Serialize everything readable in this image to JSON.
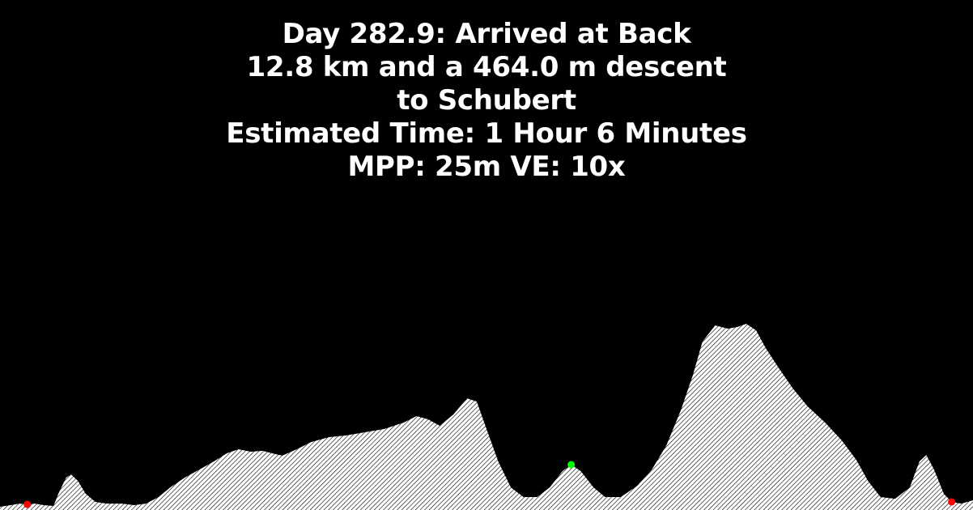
{
  "header": {
    "line1": "Day 282.9: Arrived at Back",
    "line2": "12.8 km and a 464.0 m descent",
    "line3": "to Schubert",
    "line4": "Estimated Time: 1 Hour 6 Minutes",
    "line5": "MPP: 25m VE: 10x"
  },
  "colors": {
    "background": "#000000",
    "text": "#ffffff",
    "terrain_fill": "#ffffff",
    "terrain_hatch": "#000000",
    "endpoint_marker": "#ff0000",
    "current_marker": "#00ff00"
  },
  "profile": {
    "distance_total_km": 12.8,
    "descent_m": 464.0,
    "mpp_m": 25,
    "vertical_exaggeration": 10,
    "samples": [
      [
        0.0,
        0.0
      ],
      [
        0.011,
        0.014
      ],
      [
        0.02,
        0.027
      ],
      [
        0.028,
        0.02
      ],
      [
        0.036,
        0.027
      ],
      [
        0.045,
        0.014
      ],
      [
        0.055,
        0.007
      ],
      [
        0.06,
        0.11
      ],
      [
        0.068,
        0.247
      ],
      [
        0.073,
        0.274
      ],
      [
        0.08,
        0.219
      ],
      [
        0.088,
        0.11
      ],
      [
        0.098,
        0.041
      ],
      [
        0.11,
        0.027
      ],
      [
        0.125,
        0.027
      ],
      [
        0.138,
        0.014
      ],
      [
        0.15,
        0.027
      ],
      [
        0.163,
        0.082
      ],
      [
        0.175,
        0.164
      ],
      [
        0.19,
        0.247
      ],
      [
        0.205,
        0.315
      ],
      [
        0.22,
        0.384
      ],
      [
        0.233,
        0.452
      ],
      [
        0.245,
        0.486
      ],
      [
        0.258,
        0.466
      ],
      [
        0.27,
        0.473
      ],
      [
        0.28,
        0.452
      ],
      [
        0.29,
        0.432
      ],
      [
        0.305,
        0.486
      ],
      [
        0.32,
        0.548
      ],
      [
        0.338,
        0.589
      ],
      [
        0.355,
        0.603
      ],
      [
        0.375,
        0.63
      ],
      [
        0.395,
        0.658
      ],
      [
        0.415,
        0.712
      ],
      [
        0.428,
        0.767
      ],
      [
        0.44,
        0.74
      ],
      [
        0.452,
        0.685
      ],
      [
        0.466,
        0.781
      ],
      [
        0.48,
        0.918
      ],
      [
        0.49,
        0.89
      ],
      [
        0.5,
        0.658
      ],
      [
        0.512,
        0.384
      ],
      [
        0.525,
        0.164
      ],
      [
        0.538,
        0.082
      ],
      [
        0.552,
        0.082
      ],
      [
        0.565,
        0.164
      ],
      [
        0.578,
        0.301
      ],
      [
        0.587,
        0.356
      ],
      [
        0.597,
        0.301
      ],
      [
        0.61,
        0.164
      ],
      [
        0.622,
        0.082
      ],
      [
        0.638,
        0.082
      ],
      [
        0.655,
        0.178
      ],
      [
        0.67,
        0.315
      ],
      [
        0.685,
        0.521
      ],
      [
        0.7,
        0.822
      ],
      [
        0.712,
        1.11
      ],
      [
        0.722,
        1.397
      ],
      [
        0.735,
        1.534
      ],
      [
        0.748,
        1.507
      ],
      [
        0.758,
        1.521
      ],
      [
        0.767,
        1.548
      ],
      [
        0.777,
        1.493
      ],
      [
        0.787,
        1.342
      ],
      [
        0.8,
        1.178
      ],
      [
        0.815,
        1.0
      ],
      [
        0.83,
        0.849
      ],
      [
        0.848,
        0.712
      ],
      [
        0.865,
        0.562
      ],
      [
        0.88,
        0.397
      ],
      [
        0.892,
        0.219
      ],
      [
        0.905,
        0.082
      ],
      [
        0.92,
        0.068
      ],
      [
        0.935,
        0.164
      ],
      [
        0.945,
        0.384
      ],
      [
        0.952,
        0.438
      ],
      [
        0.96,
        0.315
      ],
      [
        0.97,
        0.11
      ],
      [
        0.978,
        0.041
      ],
      [
        0.988,
        0.027
      ],
      [
        1.0,
        0.055
      ]
    ],
    "start_marker": [
      0.028,
      0.02
    ],
    "current_marker": [
      0.587,
      0.356
    ],
    "end_marker": [
      0.978,
      0.041
    ]
  }
}
